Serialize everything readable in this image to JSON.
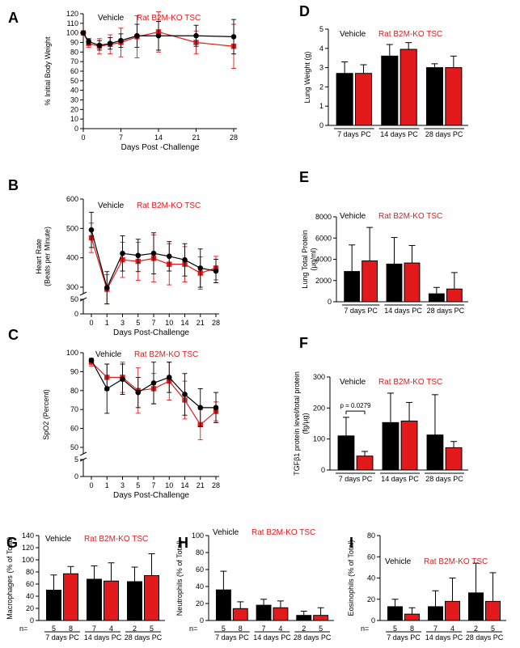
{
  "colors": {
    "vehicle": "#000000",
    "ko": "#e31a1c",
    "axis": "#000000"
  },
  "chart_data": [
    {
      "id": "A",
      "type": "line",
      "letter": "A",
      "title": "",
      "xlabel": "Days Post -Challenge",
      "ylabel": "% Initial Body Weight",
      "ylim": [
        0,
        120
      ],
      "yticks": [
        0,
        10,
        20,
        30,
        40,
        50,
        60,
        70,
        80,
        90,
        100,
        110,
        120
      ],
      "xlim": [
        0,
        28
      ],
      "xticks": [
        0,
        7,
        14,
        21,
        28
      ],
      "legend": {
        "vehicle": "Vehicle",
        "ko": "Rat B2M-KO TSC",
        "position": "top-left"
      },
      "series": [
        {
          "name": "Vehicle",
          "color": "#000000",
          "marker": "circle",
          "x": [
            0,
            1,
            3,
            5,
            7,
            10,
            14,
            21,
            28
          ],
          "y": [
            100,
            91,
            87,
            89,
            92,
            97,
            97,
            97,
            96
          ],
          "err": [
            0,
            3,
            5,
            6,
            7,
            12,
            15,
            11,
            18
          ]
        },
        {
          "name": "Rat B2M-KO TSC",
          "color": "#e31a1c",
          "marker": "square",
          "x": [
            0,
            1,
            3,
            5,
            7,
            10,
            14,
            21,
            28
          ],
          "y": [
            100,
            89,
            86,
            88,
            90,
            96,
            101,
            90,
            86
          ],
          "err": [
            0,
            4,
            8,
            10,
            15,
            22,
            21,
            12,
            23
          ]
        }
      ]
    },
    {
      "id": "B",
      "type": "line",
      "letter": "B",
      "xlabel": "Days Post-Challenge",
      "ylabel": "Heart Rate (Beats per Minute)",
      "ylim": [
        0,
        600
      ],
      "yticks": [
        0,
        50,
        300,
        400,
        500,
        600
      ],
      "categories": [
        "0",
        "1",
        "3",
        "5",
        "7",
        "10",
        "14",
        "21",
        "28"
      ],
      "legend": {
        "vehicle": "Vehicle",
        "ko": "Rat B2M-KO TSC",
        "position": "top-left"
      },
      "series": [
        {
          "name": "Vehicle",
          "color": "#000000",
          "marker": "circle",
          "y": [
            495,
            298,
            415,
            408,
            415,
            405,
            393,
            365,
            355
          ],
          "err": [
            60,
            55,
            60,
            55,
            70,
            50,
            55,
            65,
            40
          ]
        },
        {
          "name": "Rat B2M-KO TSC",
          "color": "#e31a1c",
          "marker": "square",
          "y": [
            468,
            293,
            393,
            388,
            398,
            378,
            378,
            348,
            365
          ],
          "err": [
            50,
            50,
            60,
            65,
            80,
            70,
            60,
            55,
            40
          ]
        }
      ]
    },
    {
      "id": "C",
      "type": "line",
      "letter": "C",
      "xlabel": "Days Post-Challenge",
      "ylabel": "SpO2 (Percent)",
      "ylim": [
        0,
        100
      ],
      "yticks": [
        0,
        5,
        50,
        60,
        70,
        80,
        90,
        100
      ],
      "categories": [
        "0",
        "1",
        "3",
        "5",
        "7",
        "10",
        "14",
        "21",
        "28"
      ],
      "legend": {
        "vehicle": "Vehicle",
        "ko": "Rat B2M-KO TSC",
        "position": "top-left"
      },
      "series": [
        {
          "name": "Vehicle",
          "color": "#000000",
          "marker": "circle",
          "y": [
            96,
            81,
            86,
            79,
            84,
            87,
            78,
            71,
            71
          ],
          "err": [
            1,
            13,
            8,
            8,
            11,
            8,
            11,
            10,
            8
          ]
        },
        {
          "name": "Rat B2M-KO TSC",
          "color": "#e31a1c",
          "marker": "square",
          "y": [
            95,
            87,
            87,
            80,
            81,
            85,
            75,
            62,
            69
          ],
          "err": [
            2,
            7,
            8,
            12,
            8,
            10,
            10,
            8,
            5
          ]
        }
      ]
    },
    {
      "id": "D",
      "type": "bar",
      "letter": "D",
      "ylabel": "Lung Weight (g)",
      "ylim": [
        0,
        5
      ],
      "yticks": [
        0,
        1,
        2,
        3,
        4,
        5
      ],
      "categories": [
        "7 days PC",
        "14 days PC",
        "28 days PC"
      ],
      "legend": {
        "vehicle": "Vehicle",
        "ko": "Rat B2M-KO TSC",
        "position": "top-left"
      },
      "series": [
        {
          "name": "Vehicle",
          "color": "#000000",
          "values": [
            2.7,
            3.6,
            3.0
          ],
          "err": [
            0.6,
            0.6,
            0.2
          ]
        },
        {
          "name": "Rat B2M-KO TSC",
          "color": "#e31a1c",
          "values": [
            2.7,
            3.95,
            3.0
          ],
          "err": [
            0.45,
            0.35,
            0.6
          ]
        }
      ]
    },
    {
      "id": "E",
      "type": "bar",
      "letter": "E",
      "ylabel": "Lung Total Protein (µg/ml)",
      "ylim": [
        0,
        8000
      ],
      "yticks": [
        0,
        2000,
        4000,
        6000,
        8000
      ],
      "categories": [
        "7 days PC",
        "14 days PC",
        "28 days PC"
      ],
      "legend": {
        "vehicle": "Vehicle",
        "ko": "Rat B2M-KO TSC",
        "position": "top-left"
      },
      "series": [
        {
          "name": "Vehicle",
          "color": "#000000",
          "values": [
            2850,
            3550,
            750
          ],
          "err": [
            2500,
            2500,
            600
          ]
        },
        {
          "name": "Rat B2M-KO TSC",
          "color": "#e31a1c",
          "values": [
            3850,
            3650,
            1200
          ],
          "err": [
            3150,
            1650,
            1550
          ]
        }
      ]
    },
    {
      "id": "F",
      "type": "bar",
      "letter": "F",
      "ylabel": "TGFβ1 protein level/total protein (fg/µg)",
      "ylim": [
        0,
        300
      ],
      "yticks": [
        0,
        100,
        200,
        300
      ],
      "categories": [
        "7 days PC",
        "14 days PC",
        "28 days PC"
      ],
      "legend": {
        "vehicle": "Vehicle",
        "ko": "Rat B2M-KO TSC",
        "position": "top-left"
      },
      "annotation": "p = 0.0279",
      "series": [
        {
          "name": "Vehicle",
          "color": "#000000",
          "values": [
            110,
            153,
            113
          ],
          "err": [
            60,
            95,
            130
          ]
        },
        {
          "name": "Rat B2M-KO TSC",
          "color": "#e31a1c",
          "values": [
            45,
            158,
            72
          ],
          "err": [
            15,
            60,
            20
          ]
        }
      ]
    },
    {
      "id": "G",
      "type": "bar",
      "letter": "G",
      "ylabel": "Macrophages (% of Total)",
      "ylim": [
        0,
        140
      ],
      "yticks": [
        0,
        20,
        40,
        60,
        80,
        100,
        120,
        140
      ],
      "categories": [
        "7 days PC",
        "14 days PC",
        "28 days PC"
      ],
      "legend": {
        "vehicle": "Vehicle",
        "ko": "Rat B2M-KO TSC",
        "position": "top-left"
      },
      "n_label": "n=",
      "n_values": [
        [
          "5",
          "8"
        ],
        [
          "7",
          "4"
        ],
        [
          "2",
          "5"
        ]
      ],
      "series": [
        {
          "name": "Vehicle",
          "color": "#000000",
          "values": [
            50,
            68,
            64
          ],
          "err": [
            25,
            22,
            24
          ]
        },
        {
          "name": "Rat B2M-KO TSC",
          "color": "#e31a1c",
          "values": [
            77,
            65,
            74
          ],
          "err": [
            12,
            30,
            36
          ]
        }
      ]
    },
    {
      "id": "H",
      "type": "bar",
      "letter": "H",
      "ylabel": "Neutrophils (% of Total)",
      "ylim": [
        0,
        100
      ],
      "yticks": [
        0,
        20,
        40,
        60,
        80,
        100
      ],
      "categories": [
        "7 days PC",
        "14 days PC",
        "28 days PC"
      ],
      "legend": {
        "vehicle": "Vehicle",
        "ko": "Rat B2M-KO TSC",
        "position": "top-left"
      },
      "n_label": "n=",
      "n_values": [
        [
          "5",
          "8"
        ],
        [
          "7",
          "4"
        ],
        [
          "2",
          "5"
        ]
      ],
      "series": [
        {
          "name": "Vehicle",
          "color": "#000000",
          "values": [
            36,
            18,
            6
          ],
          "err": [
            22,
            7,
            5
          ]
        },
        {
          "name": "Rat B2M-KO TSC",
          "color": "#e31a1c",
          "values": [
            14,
            15,
            6
          ],
          "err": [
            8,
            8,
            9
          ]
        }
      ]
    },
    {
      "id": "I",
      "type": "bar",
      "letter": "I",
      "ylabel": "Eosinophils (% of Total)",
      "ylim": [
        0,
        80
      ],
      "yticks": [
        0,
        20,
        40,
        60,
        80
      ],
      "categories": [
        "7 days PC",
        "14 days PC",
        "28 days PC"
      ],
      "legend": {
        "vehicle": "Vehicle",
        "ko": "Rat B2M-KO TSC",
        "position": "left"
      },
      "n_label": "n=",
      "n_values": [
        [
          "5",
          "8"
        ],
        [
          "7",
          "4"
        ],
        [
          "2",
          "5"
        ]
      ],
      "series": [
        {
          "name": "Vehicle",
          "color": "#000000",
          "values": [
            13,
            13,
            26
          ],
          "err": [
            7,
            15,
            28
          ]
        },
        {
          "name": "Rat B2M-KO TSC",
          "color": "#e31a1c",
          "values": [
            6,
            18,
            18
          ],
          "err": [
            6,
            22,
            27
          ]
        }
      ]
    }
  ]
}
